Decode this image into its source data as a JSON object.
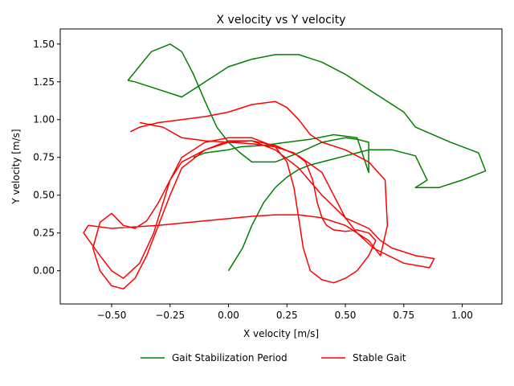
{
  "chart_data": {
    "type": "line",
    "title": "X velocity vs Y velocity",
    "xlabel": "X velocity [m/s]",
    "ylabel": "Y velocity [m/s]",
    "xlim": [
      -0.72,
      1.17
    ],
    "ylim": [
      -0.22,
      1.6
    ],
    "xticks": [
      -0.5,
      -0.25,
      0.0,
      0.25,
      0.5,
      0.75,
      1.0
    ],
    "xtick_labels": [
      "−0.50",
      "−0.25",
      "0.00",
      "0.25",
      "0.50",
      "0.75",
      "1.00"
    ],
    "yticks": [
      0.0,
      0.25,
      0.5,
      0.75,
      1.0,
      1.25,
      1.5
    ],
    "ytick_labels": [
      "0.00",
      "0.25",
      "0.50",
      "0.75",
      "1.00",
      "1.25",
      "1.50"
    ],
    "grid": false,
    "legend_position": "bottom-center",
    "series": [
      {
        "name": "Gait Stabilization Period",
        "color": "#008000",
        "x": [
          0.0,
          0.02,
          0.06,
          0.1,
          0.15,
          0.2,
          0.25,
          0.3,
          0.35,
          0.4,
          0.45,
          0.5,
          0.55,
          0.6,
          0.7,
          0.8,
          0.85,
          0.8,
          0.9,
          1.0,
          1.1,
          1.07,
          0.95,
          0.8,
          0.75,
          0.6,
          0.5,
          0.4,
          0.3,
          0.2,
          0.1,
          0.0,
          -0.1,
          -0.2,
          -0.3,
          -0.4,
          -0.43,
          -0.33,
          -0.25,
          -0.2,
          -0.15,
          -0.1,
          -0.05,
          0.0,
          0.05,
          0.1,
          0.2,
          0.3,
          0.4,
          0.5,
          0.55,
          0.6,
          0.6,
          0.55,
          0.45,
          0.35,
          0.25,
          0.15,
          0.05,
          0.0,
          -0.1,
          -0.15
        ],
        "y": [
          0.0,
          0.05,
          0.15,
          0.3,
          0.45,
          0.55,
          0.62,
          0.67,
          0.7,
          0.72,
          0.74,
          0.76,
          0.78,
          0.8,
          0.8,
          0.76,
          0.6,
          0.55,
          0.55,
          0.6,
          0.66,
          0.78,
          0.85,
          0.95,
          1.05,
          1.2,
          1.3,
          1.38,
          1.43,
          1.43,
          1.4,
          1.35,
          1.25,
          1.15,
          1.2,
          1.25,
          1.26,
          1.45,
          1.5,
          1.45,
          1.3,
          1.12,
          0.95,
          0.85,
          0.78,
          0.72,
          0.72,
          0.78,
          0.85,
          0.88,
          0.87,
          0.85,
          0.65,
          0.88,
          0.9,
          0.87,
          0.85,
          0.83,
          0.82,
          0.8,
          0.78,
          0.75
        ]
      },
      {
        "name": "Stable Gait",
        "color": "#ff0000",
        "x": [
          -0.38,
          -0.28,
          -0.2,
          -0.1,
          0.0,
          0.1,
          0.2,
          0.28,
          0.33,
          0.36,
          0.38,
          0.4,
          0.42,
          0.45,
          0.5,
          0.55,
          0.6,
          0.63,
          0.6,
          0.55,
          0.5,
          0.45,
          0.4,
          0.35,
          0.32,
          0.3,
          0.28,
          0.25,
          0.2,
          0.1,
          0.0,
          -0.1,
          -0.2,
          -0.25,
          -0.3,
          -0.35,
          -0.4,
          -0.45,
          -0.5,
          -0.55,
          -0.58,
          -0.55,
          -0.5,
          -0.45,
          -0.4,
          -0.35,
          -0.3,
          -0.25,
          -0.2,
          -0.1,
          0.0,
          0.1,
          0.2,
          0.3,
          0.4,
          0.5,
          0.6,
          0.65,
          0.7,
          0.8,
          0.88,
          0.86,
          0.75,
          0.62,
          0.55,
          0.5,
          0.4,
          0.3,
          0.2,
          0.1,
          -0.1,
          -0.3,
          -0.5,
          -0.6,
          -0.62,
          -0.55,
          -0.5,
          -0.45,
          -0.38,
          -0.32,
          -0.28,
          -0.25,
          -0.2,
          -0.1,
          0.0,
          0.1,
          0.2,
          0.3,
          0.4,
          0.45,
          0.5,
          0.55,
          0.6,
          0.65,
          0.68,
          0.67,
          0.6,
          0.5,
          0.4,
          0.35,
          0.3,
          0.25,
          0.2,
          0.1,
          0.0,
          -0.1,
          -0.2,
          -0.3,
          -0.38,
          -0.42
        ],
        "y": [
          0.98,
          0.95,
          0.88,
          0.86,
          0.85,
          0.84,
          0.82,
          0.78,
          0.72,
          0.6,
          0.45,
          0.35,
          0.3,
          0.27,
          0.26,
          0.27,
          0.25,
          0.2,
          0.1,
          0.0,
          -0.05,
          -0.08,
          -0.06,
          0.0,
          0.15,
          0.35,
          0.55,
          0.72,
          0.82,
          0.88,
          0.88,
          0.85,
          0.75,
          0.6,
          0.45,
          0.33,
          0.28,
          0.3,
          0.38,
          0.32,
          0.15,
          0.0,
          -0.1,
          -0.12,
          -0.05,
          0.1,
          0.3,
          0.5,
          0.68,
          0.8,
          0.86,
          0.86,
          0.8,
          0.68,
          0.5,
          0.35,
          0.28,
          0.2,
          0.15,
          0.1,
          0.08,
          0.02,
          0.05,
          0.15,
          0.25,
          0.3,
          0.35,
          0.37,
          0.37,
          0.36,
          0.33,
          0.3,
          0.28,
          0.3,
          0.25,
          0.1,
          0.0,
          -0.05,
          0.05,
          0.25,
          0.45,
          0.6,
          0.72,
          0.8,
          0.85,
          0.86,
          0.83,
          0.76,
          0.65,
          0.5,
          0.35,
          0.25,
          0.2,
          0.1,
          0.3,
          0.6,
          0.72,
          0.8,
          0.85,
          0.9,
          1.0,
          1.08,
          1.12,
          1.1,
          1.05,
          1.02,
          1.0,
          0.98,
          0.95,
          0.92
        ]
      }
    ]
  }
}
